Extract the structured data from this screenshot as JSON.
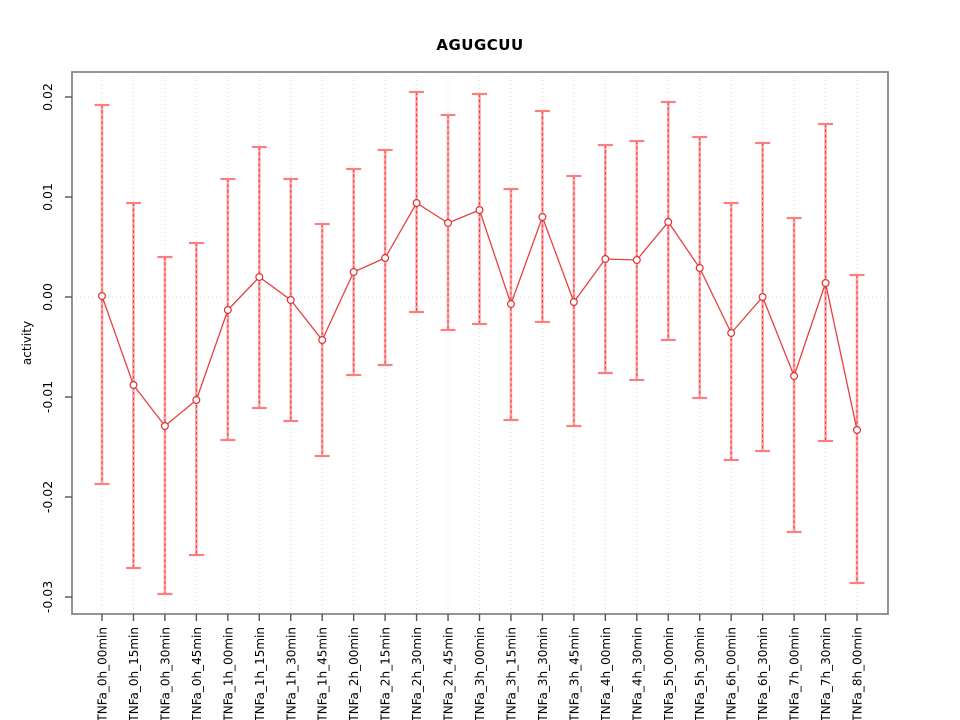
{
  "chart_data": {
    "type": "line",
    "title": "AGUGCUU",
    "xlabel": "",
    "ylabel": "activity",
    "legend": "none",
    "ylim": [
      -0.032,
      0.0225
    ],
    "yticks": [
      0.02,
      0.01,
      0.0,
      -0.01,
      -0.02,
      -0.03
    ],
    "ytick_labels": [
      "0.02",
      "0.01",
      "0.00",
      "-0.01",
      "-0.02",
      "-0.03"
    ],
    "grid": "vertical dotted line at each category; horizontal dotted line at y=0",
    "xtick_label_rotation": 90,
    "marker": "open-circle",
    "categories": [
      "TNFa_0h_00min",
      "TNFa_0h_15min",
      "TNFa_0h_30min",
      "TNFa_0h_45min",
      "TNFa_1h_00min",
      "TNFa_1h_15min",
      "TNFa_1h_30min",
      "TNFa_1h_45min",
      "TNFa_2h_00min",
      "TNFa_2h_15min",
      "TNFa_2h_30min",
      "TNFa_2h_45min",
      "TNFa_3h_00min",
      "TNFa_3h_15min",
      "TNFa_3h_30min",
      "TNFa_3h_45min",
      "TNFa_4h_00min",
      "TNFa_4h_30min",
      "TNFa_5h_00min",
      "TNFa_5h_30min",
      "TNFa_6h_00min",
      "TNFa_6h_30min",
      "TNFa_7h_00min",
      "TNFa_7h_30min",
      "TNFa_8h_00min"
    ],
    "series": [
      {
        "values": [
          0.0001,
          -0.0088,
          -0.0129,
          -0.0103,
          -0.0013,
          0.002,
          -0.0003,
          -0.0043,
          0.0025,
          0.0039,
          0.0094,
          0.0074,
          0.0087,
          -0.0007,
          0.008,
          -0.0005,
          0.0038,
          0.0037,
          0.0075,
          0.0029,
          -0.0036,
          0.0,
          -0.0079,
          0.0014,
          -0.0133
        ],
        "upper": [
          0.0192,
          0.0094,
          0.004,
          0.0054,
          0.0118,
          0.015,
          0.0118,
          0.0073,
          0.0128,
          0.0147,
          0.0205,
          0.0182,
          0.0203,
          0.0108,
          0.0186,
          0.0121,
          0.0152,
          0.0156,
          0.0195,
          0.016,
          0.0094,
          0.0154,
          0.0079,
          0.0173,
          0.0022
        ],
        "lower": [
          -0.0187,
          -0.0271,
          -0.0297,
          -0.0258,
          -0.0143,
          -0.0111,
          -0.0124,
          -0.0159,
          -0.0078,
          -0.0068,
          -0.0015,
          -0.0033,
          -0.0027,
          -0.0123,
          -0.0025,
          -0.0129,
          -0.0076,
          -0.0083,
          -0.0043,
          -0.0101,
          -0.0163,
          -0.0154,
          -0.0235,
          -0.0144,
          -0.0286
        ]
      }
    ],
    "colors": {
      "series_line": "#e84040",
      "marker_stroke": "#dd3333",
      "error_bar": "#ffa3a3",
      "error_bar_dash": "#e04545",
      "error_cap": "#f88080",
      "grid": "#dcdcdc",
      "box": "#888888",
      "tick": "#555555",
      "text": "#000000",
      "background": "#ffffff"
    }
  }
}
